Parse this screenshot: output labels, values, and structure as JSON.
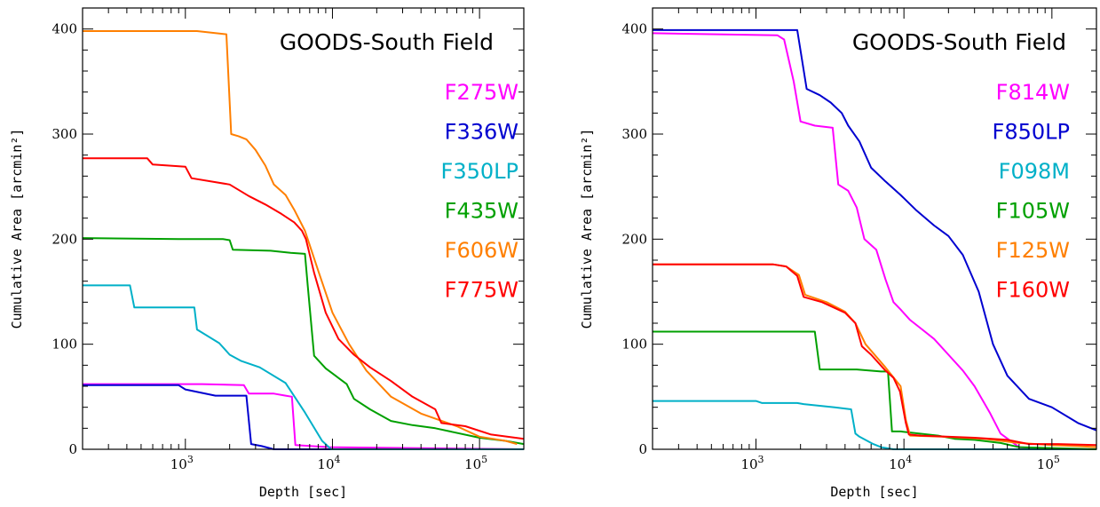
{
  "chart_data": [
    {
      "type": "line",
      "title": "GOODS-South Field",
      "xlabel": "Depth [sec]",
      "ylabel": "Cumulative Area [arcmin²]",
      "xscale": "log",
      "xlim": [
        200,
        200000
      ],
      "ylim": [
        0,
        420
      ],
      "xticks": [
        {
          "value": 1000,
          "base": "10",
          "exp": "3"
        },
        {
          "value": 10000,
          "base": "10",
          "exp": "4"
        },
        {
          "value": 100000,
          "base": "10",
          "exp": "5"
        }
      ],
      "yticks": [
        0,
        100,
        200,
        300,
        400
      ],
      "grid": false,
      "legend_position": "top-right",
      "series": [
        {
          "name": "F275W",
          "color": "#ff00ff",
          "x": [
            200,
            1300,
            2500,
            2700,
            4000,
            4800,
            5300,
            5600,
            9500,
            200000
          ],
          "y": [
            62,
            62,
            61,
            53,
            53,
            51,
            50,
            4,
            2,
            0
          ]
        },
        {
          "name": "F336W",
          "color": "#0000d0",
          "x": [
            200,
            900,
            1000,
            1600,
            2600,
            2800,
            3300,
            4000,
            200000
          ],
          "y": [
            61,
            61,
            57,
            51,
            51,
            5,
            3,
            0,
            0
          ]
        },
        {
          "name": "F350LP",
          "color": "#00b0c8",
          "x": [
            200,
            420,
            450,
            1150,
            1200,
            1700,
            2000,
            2400,
            3200,
            4800,
            6500,
            8500,
            9800,
            200000
          ],
          "y": [
            156,
            156,
            135,
            135,
            114,
            101,
            90,
            84,
            78,
            63,
            35,
            8,
            0,
            0
          ]
        },
        {
          "name": "F435W",
          "color": "#00a000",
          "x": [
            200,
            900,
            1800,
            2000,
            2100,
            3800,
            5200,
            6500,
            6800,
            7500,
            9000,
            10500,
            12500,
            14000,
            18000,
            25000,
            35000,
            50000,
            100000,
            150000,
            200000
          ],
          "y": [
            201,
            200,
            200,
            199,
            190,
            189,
            187,
            186,
            155,
            89,
            77,
            70,
            62,
            48,
            38,
            27,
            23,
            20,
            11,
            8,
            5
          ]
        },
        {
          "name": "F606W",
          "color": "#ff7f00",
          "x": [
            200,
            800,
            1200,
            1900,
            2050,
            2300,
            2600,
            3000,
            3500,
            4000,
            4800,
            5500,
            6500,
            8000,
            10000,
            13000,
            17000,
            25000,
            40000,
            70000,
            100000,
            150000,
            180000
          ],
          "y": [
            398,
            398,
            398,
            395,
            300,
            298,
            295,
            285,
            270,
            252,
            242,
            228,
            208,
            170,
            130,
            100,
            75,
            50,
            34,
            22,
            12,
            8,
            5
          ]
        },
        {
          "name": "F775W",
          "color": "#ff0000",
          "x": [
            200,
            550,
            600,
            1000,
            1100,
            2000,
            2700,
            3500,
            4500,
            5500,
            6200,
            6600,
            7500,
            9000,
            11000,
            14000,
            18000,
            25000,
            35000,
            50000,
            55000,
            80000,
            120000,
            200000
          ],
          "y": [
            277,
            277,
            271,
            269,
            258,
            252,
            241,
            233,
            224,
            216,
            208,
            200,
            168,
            130,
            105,
            90,
            78,
            65,
            50,
            38,
            25,
            22,
            14,
            10
          ]
        }
      ]
    },
    {
      "type": "line",
      "title": "GOODS-South Field",
      "xlabel": "Depth [sec]",
      "ylabel": "Cumulative Area [arcmin²]",
      "xscale": "log",
      "xlim": [
        200,
        200000
      ],
      "ylim": [
        0,
        420
      ],
      "xticks": [
        {
          "value": 1000,
          "base": "10",
          "exp": "3"
        },
        {
          "value": 10000,
          "base": "10",
          "exp": "4"
        },
        {
          "value": 100000,
          "base": "10",
          "exp": "5"
        }
      ],
      "yticks": [
        0,
        100,
        200,
        300,
        400
      ],
      "grid": false,
      "legend_position": "top-right",
      "series": [
        {
          "name": "F814W",
          "color": "#ff00ff",
          "x": [
            200,
            1400,
            1550,
            1800,
            2000,
            2500,
            3300,
            3600,
            4200,
            4800,
            5400,
            6500,
            7500,
            8500,
            9500,
            11000,
            13000,
            16000,
            20000,
            25000,
            30000,
            38000,
            45000,
            60000,
            100000
          ],
          "y": [
            396,
            394,
            390,
            350,
            312,
            308,
            306,
            252,
            246,
            230,
            200,
            190,
            162,
            140,
            133,
            123,
            115,
            105,
            90,
            75,
            60,
            35,
            15,
            2,
            0
          ]
        },
        {
          "name": "F850LP",
          "color": "#0000d0",
          "x": [
            200,
            1900,
            2200,
            2700,
            3200,
            3800,
            4200,
            5000,
            6000,
            7500,
            9500,
            12000,
            16000,
            20000,
            25000,
            32000,
            40000,
            50000,
            70000,
            100000,
            150000,
            200000
          ],
          "y": [
            399,
            399,
            343,
            337,
            330,
            320,
            308,
            293,
            268,
            255,
            242,
            228,
            213,
            203,
            185,
            150,
            100,
            70,
            48,
            40,
            25,
            18
          ]
        },
        {
          "name": "F098M",
          "color": "#00b0c8",
          "x": [
            200,
            1000,
            1100,
            1900,
            2100,
            3400,
            4400,
            4700,
            5000,
            6200,
            7000,
            8500,
            200000
          ],
          "y": [
            46,
            46,
            44,
            44,
            43,
            40,
            38,
            15,
            12,
            5,
            2,
            0,
            0
          ]
        },
        {
          "name": "F105W",
          "color": "#00a000",
          "x": [
            200,
            2500,
            2700,
            4800,
            7000,
            7800,
            8300,
            9500,
            17000,
            22000,
            30000,
            45000,
            60000,
            200000
          ],
          "y": [
            112,
            112,
            76,
            76,
            74,
            74,
            17,
            17,
            13,
            10,
            9,
            6,
            2,
            0
          ]
        },
        {
          "name": "F125W",
          "color": "#ff7f00",
          "x": [
            200,
            1300,
            1600,
            1950,
            2150,
            3000,
            4000,
            4700,
            5500,
            7500,
            9500,
            10300,
            11000,
            18000,
            35000,
            60000,
            100000,
            150000,
            200000
          ],
          "y": [
            176,
            176,
            174,
            166,
            147,
            140,
            131,
            120,
            100,
            78,
            60,
            28,
            13,
            12,
            10,
            6,
            4,
            3,
            2
          ]
        },
        {
          "name": "F160W",
          "color": "#ff0000",
          "x": [
            200,
            1300,
            1600,
            1900,
            2100,
            2800,
            4000,
            4700,
            5200,
            6000,
            7500,
            8500,
            9400,
            10300,
            10800,
            13000,
            30000,
            50000,
            70000,
            110000,
            200000
          ],
          "y": [
            176,
            176,
            174,
            165,
            145,
            140,
            130,
            120,
            98,
            90,
            75,
            68,
            55,
            25,
            14,
            13,
            11,
            9,
            5,
            5,
            4
          ]
        }
      ]
    }
  ]
}
